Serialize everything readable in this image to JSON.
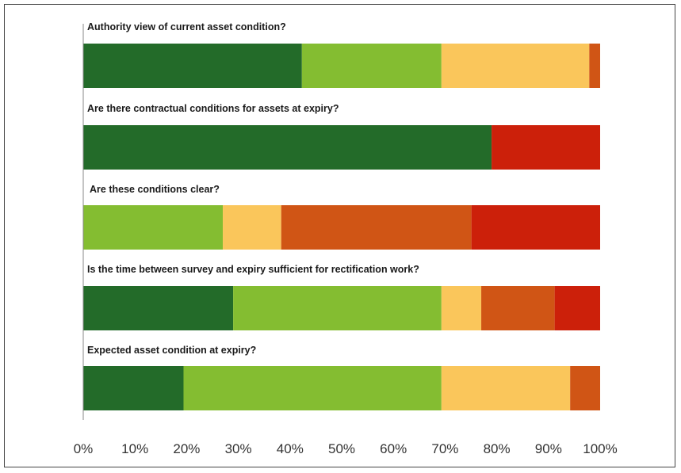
{
  "chart_data": {
    "type": "stacked-horizontal-bar-100",
    "categories": [
      "Authority view of current asset condition?",
      "Are there contractual conditions for assets at expiry?",
      "Are these conditions clear?",
      "Is the time between survey and expiry sufficient for rectification work?",
      "Expected asset condition at expiry?"
    ],
    "segment_colors": [
      "#236b29",
      "#84bd31",
      "#fac65b",
      "#d05515",
      "#cc200a"
    ],
    "series": [
      {
        "name": "segment-1",
        "values": [
          42.3,
          79.0,
          0,
          29.0,
          19.4
        ]
      },
      {
        "name": "segment-2",
        "values": [
          27.0,
          0,
          27.0,
          40.3,
          49.9
        ]
      },
      {
        "name": "segment-3",
        "values": [
          28.6,
          0,
          11.3,
          7.7,
          24.9
        ]
      },
      {
        "name": "segment-4",
        "values": [
          2.1,
          0,
          36.8,
          14.2,
          5.8
        ]
      },
      {
        "name": "segment-5",
        "values": [
          0,
          21.0,
          24.9,
          8.8,
          0
        ]
      }
    ],
    "xlim": [
      0,
      100
    ],
    "xticks": [
      "0%",
      "10%",
      "20%",
      "30%",
      "40%",
      "50%",
      "60%",
      "70%",
      "80%",
      "90%",
      "100%"
    ],
    "title": "",
    "xlabel": "",
    "ylabel": "",
    "grid": false
  }
}
